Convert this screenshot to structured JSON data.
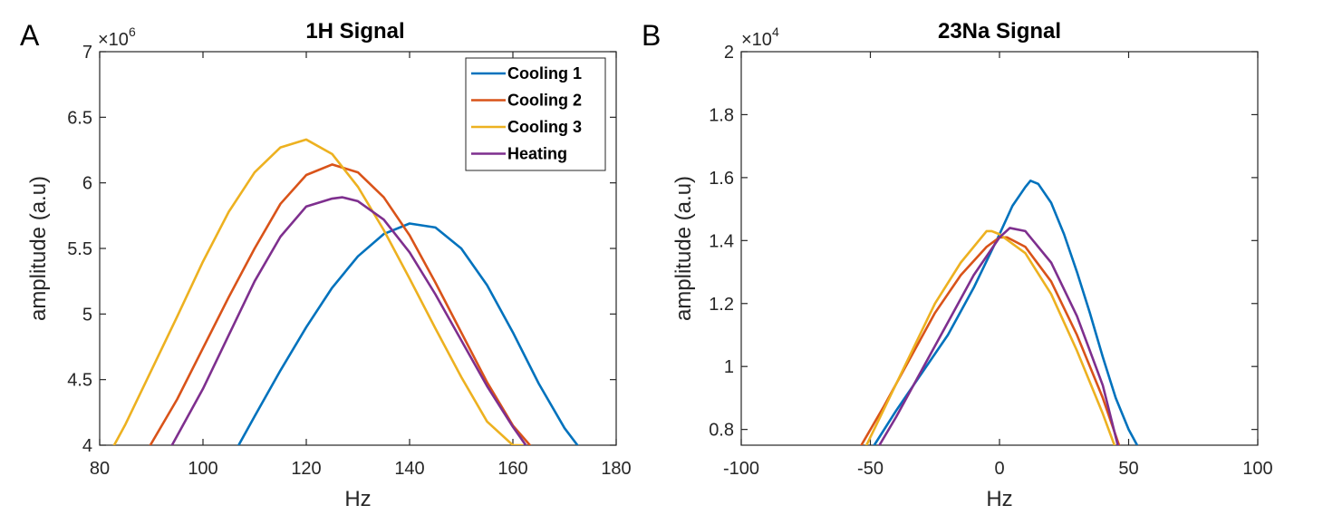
{
  "chart_data": [
    {
      "type": "line",
      "panel_letter": "A",
      "title": "1H Signal",
      "xlabel": "Hz",
      "ylabel": "amplitude (a.u)",
      "exponent_base": "×10",
      "exponent_power": "6",
      "xlim": [
        80,
        180
      ],
      "ylim": [
        4,
        7
      ],
      "xticks": [
        80,
        100,
        120,
        140,
        160,
        180
      ],
      "xtick_labels": [
        "80",
        "100",
        "120",
        "140",
        "160",
        "180"
      ],
      "yticks": [
        4,
        4.5,
        5,
        5.5,
        6,
        6.5,
        7
      ],
      "ytick_labels": [
        "4",
        "4.5",
        "5",
        "5.5",
        "6",
        "6.5",
        "7"
      ],
      "legend_position": "top-right",
      "series": [
        {
          "name": "Cooling 1",
          "color": "#0072BD",
          "x": [
            106.9,
            110,
            115,
            120,
            125,
            130,
            135,
            140,
            145,
            150,
            155,
            160,
            165,
            170,
            172.5
          ],
          "y": [
            4.0,
            4.22,
            4.57,
            4.9,
            5.2,
            5.44,
            5.61,
            5.69,
            5.66,
            5.5,
            5.22,
            4.86,
            4.47,
            4.13,
            4.0
          ]
        },
        {
          "name": "Cooling 2",
          "color": "#D95319",
          "x": [
            89.8,
            95,
            100,
            105,
            110,
            115,
            120,
            125,
            130,
            135,
            140,
            145,
            150,
            155,
            160,
            163.3
          ],
          "y": [
            4.0,
            4.35,
            4.74,
            5.13,
            5.5,
            5.84,
            6.06,
            6.14,
            6.08,
            5.89,
            5.6,
            5.24,
            4.86,
            4.48,
            4.15,
            4.0
          ]
        },
        {
          "name": "Cooling 3",
          "color": "#EDB120",
          "x": [
            82.8,
            85,
            90,
            95,
            100,
            105,
            110,
            115,
            120,
            125,
            130,
            135,
            140,
            145,
            150,
            155,
            160,
            161.8
          ],
          "y": [
            4.0,
            4.16,
            4.57,
            4.98,
            5.4,
            5.78,
            6.08,
            6.27,
            6.33,
            6.22,
            5.97,
            5.64,
            5.27,
            4.89,
            4.52,
            4.18,
            4.0,
            4.0
          ]
        },
        {
          "name": "Heating",
          "color": "#7E2F8E",
          "x": [
            94.0,
            100,
            105,
            110,
            115,
            120,
            125,
            127,
            130,
            135,
            140,
            145,
            150,
            155,
            160,
            162.5
          ],
          "y": [
            4.0,
            4.43,
            4.84,
            5.25,
            5.59,
            5.82,
            5.88,
            5.89,
            5.86,
            5.72,
            5.47,
            5.15,
            4.8,
            4.45,
            4.14,
            4.0
          ]
        }
      ]
    },
    {
      "type": "line",
      "panel_letter": "B",
      "title": "23Na Signal",
      "xlabel": "Hz",
      "ylabel": "amplitude (a.u)",
      "exponent_base": "×10",
      "exponent_power": "4",
      "xlim": [
        -100,
        100
      ],
      "ylim": [
        0.75,
        2
      ],
      "xticks": [
        -100,
        -50,
        0,
        50,
        100
      ],
      "xtick_labels": [
        "-100",
        "-50",
        "0",
        "50",
        "100"
      ],
      "yticks": [
        0.8,
        1,
        1.2,
        1.4,
        1.6,
        1.8,
        2
      ],
      "ytick_labels": [
        "0.8",
        "1",
        "1.2",
        "1.4",
        "1.6",
        "1.8",
        "2"
      ],
      "series": [
        {
          "name": "Cooling 1",
          "color": "#0072BD",
          "x": [
            -48.5,
            -40,
            -30,
            -20,
            -10,
            0,
            5,
            10,
            12,
            15,
            20,
            25,
            30,
            35,
            40,
            45,
            50,
            53.3
          ],
          "y": [
            0.75,
            0.86,
            0.98,
            1.1,
            1.25,
            1.42,
            1.51,
            1.57,
            1.59,
            1.58,
            1.52,
            1.42,
            1.3,
            1.17,
            1.03,
            0.9,
            0.8,
            0.75
          ]
        },
        {
          "name": "Cooling 2",
          "color": "#D95319",
          "x": [
            -53.5,
            -45,
            -35,
            -25,
            -15,
            -5,
            0,
            3,
            10,
            20,
            30,
            40,
            46.3
          ],
          "y": [
            0.75,
            0.87,
            1.02,
            1.17,
            1.29,
            1.38,
            1.41,
            1.41,
            1.38,
            1.27,
            1.1,
            0.9,
            0.75
          ]
        },
        {
          "name": "Cooling 3",
          "color": "#EDB120",
          "x": [
            -51.5,
            -45,
            -35,
            -25,
            -15,
            -5,
            -3,
            0,
            10,
            20,
            30,
            40,
            44.5
          ],
          "y": [
            0.75,
            0.86,
            1.03,
            1.2,
            1.33,
            1.43,
            1.43,
            1.42,
            1.36,
            1.23,
            1.05,
            0.85,
            0.75
          ]
        },
        {
          "name": "Heating",
          "color": "#7E2F8E",
          "x": [
            -46.5,
            -40,
            -30,
            -20,
            -10,
            0,
            4,
            10,
            20,
            30,
            40,
            45.8
          ],
          "y": [
            0.75,
            0.84,
            0.99,
            1.14,
            1.29,
            1.41,
            1.44,
            1.43,
            1.33,
            1.16,
            0.94,
            0.75
          ]
        }
      ]
    }
  ]
}
